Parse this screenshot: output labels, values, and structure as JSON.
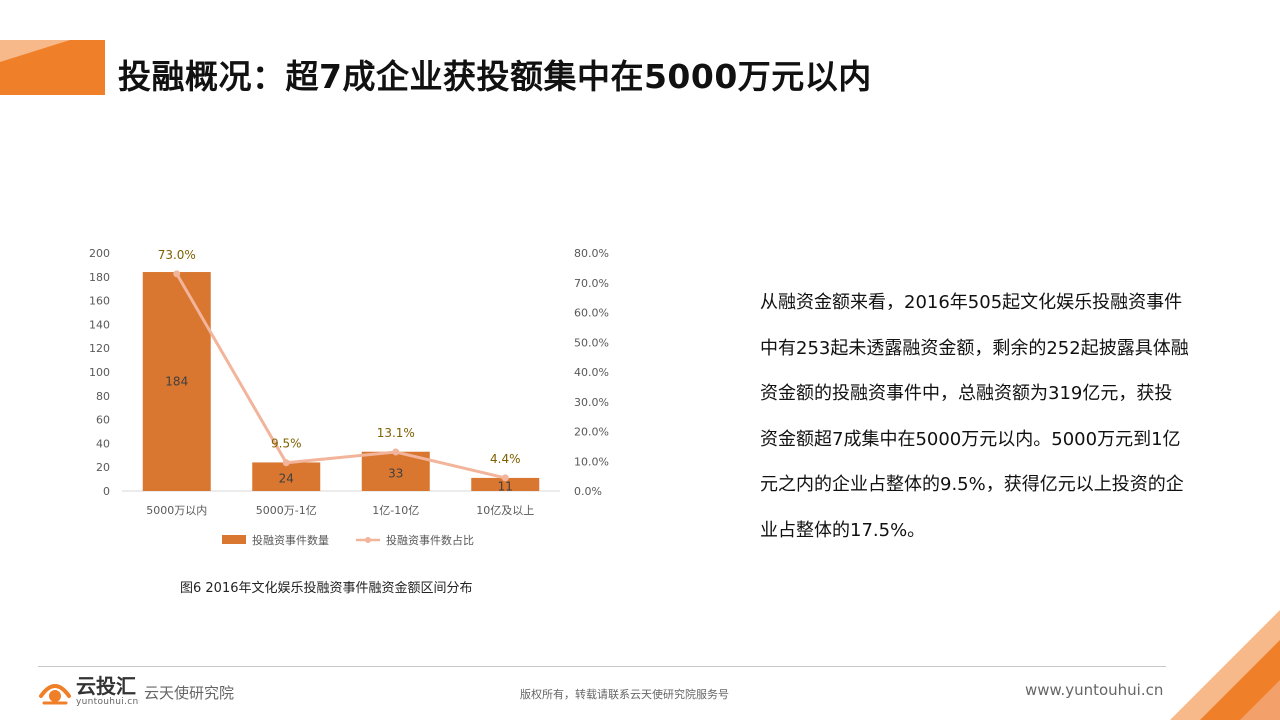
{
  "header": {
    "title": "投融概况：超7成企业获投额集中在5000万元以内"
  },
  "chart_data": {
    "type": "bar+line",
    "categories": [
      "5000万以内",
      "5000万-1亿",
      "1亿-10亿",
      "10亿及以上"
    ],
    "series": [
      {
        "name": "投融资事件数量",
        "type": "bar",
        "axis": "left",
        "values": [
          184,
          24,
          33,
          11
        ],
        "labels": [
          "184",
          "24",
          "33",
          "11"
        ]
      },
      {
        "name": "投融资事件数占比",
        "type": "line",
        "axis": "right",
        "values": [
          73.0,
          9.5,
          13.1,
          4.4
        ],
        "labels": [
          "73.0%",
          "9.5%",
          "13.1%",
          "4.4%"
        ]
      }
    ],
    "y_left": {
      "min": 0,
      "max": 200,
      "ticks": [
        "0",
        "20",
        "40",
        "60",
        "80",
        "100",
        "120",
        "140",
        "160",
        "180",
        "200"
      ]
    },
    "y_right": {
      "min": 0,
      "max": 80,
      "ticks": [
        "0.0%",
        "10.0%",
        "20.0%",
        "30.0%",
        "40.0%",
        "50.0%",
        "60.0%",
        "70.0%",
        "80.0%"
      ]
    },
    "legend_position": "bottom",
    "caption": "图6  2016年文化娱乐投融资事件融资金额区间分布",
    "colors": {
      "bar": "#d9762f",
      "line": "#f2b49a",
      "axis_text": "#595959",
      "label_text": "#404040",
      "line_label_text": "#7f6000"
    }
  },
  "body": {
    "paragraph": "从融资金额来看，2016年505起文化娱乐投融资事件中有253起未透露融资金额，剩余的252起披露具体融资金额的投融资事件中，总融资额为319亿元，获投资金额超7成集中在5000万元以内。5000万元到1亿元之内的企业占整体的9.5%，获得亿元以上投资的企业占整体的17.5%。"
  },
  "footer": {
    "logo_name": "云投汇",
    "logo_url": "yuntouhui.cn",
    "institute": "云天使研究院",
    "copyright": "版权所有，转载请联系云天使研究院服务号",
    "website": "www.yuntouhui.cn"
  },
  "theme": {
    "accent": "#f07f2a",
    "accent_light": "#f7b98a"
  }
}
